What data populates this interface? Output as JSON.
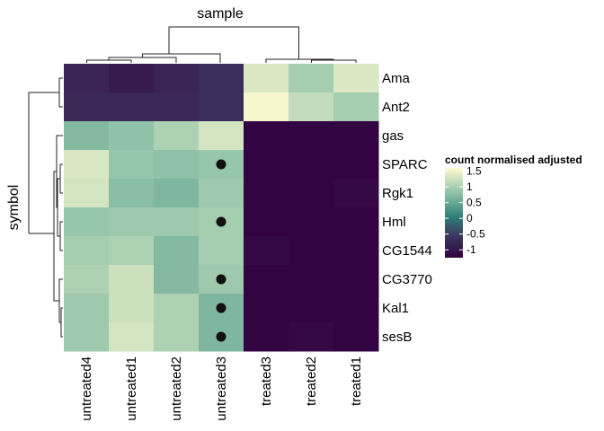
{
  "chart_data": {
    "type": "heatmap",
    "title": "sample",
    "xlabel": "sample",
    "ylabel": "symbol",
    "columns": [
      "untreated4",
      "untreated1",
      "untreated2",
      "untreated3",
      "treated3",
      "treated2",
      "treated1"
    ],
    "rows": [
      "Ama",
      "Ant2",
      "gas",
      "SPARC",
      "Rgk1",
      "Hml",
      "CG1544",
      "CG3770",
      "Kal1",
      "sesB"
    ],
    "values": [
      [
        -0.85,
        -0.95,
        -0.85,
        -0.75,
        1.35,
        1.0,
        1.35
      ],
      [
        -0.8,
        -0.8,
        -0.8,
        -0.75,
        1.55,
        1.2,
        1.0
      ],
      [
        0.75,
        0.85,
        1.05,
        1.3,
        -1.2,
        -1.2,
        -1.2
      ],
      [
        1.35,
        0.9,
        0.85,
        0.9,
        -1.2,
        -1.2,
        -1.2
      ],
      [
        1.3,
        0.8,
        0.7,
        0.95,
        -1.2,
        -1.2,
        -1.15
      ],
      [
        0.9,
        0.95,
        0.95,
        1.0,
        -1.2,
        -1.2,
        -1.2
      ],
      [
        1.0,
        1.05,
        0.75,
        1.0,
        -1.15,
        -1.2,
        -1.2
      ],
      [
        1.05,
        1.25,
        0.75,
        0.95,
        -1.2,
        -1.2,
        -1.2
      ],
      [
        0.95,
        1.25,
        1.05,
        0.7,
        -1.2,
        -1.2,
        -1.2
      ],
      [
        0.95,
        1.3,
        1.05,
        0.7,
        -1.2,
        -1.15,
        -1.2
      ]
    ],
    "markers": [
      {
        "row": "SPARC",
        "column": "untreated3"
      },
      {
        "row": "Hml",
        "column": "untreated3"
      },
      {
        "row": "CG3770",
        "column": "untreated3"
      },
      {
        "row": "Kal1",
        "column": "untreated3"
      },
      {
        "row": "sesB",
        "column": "untreated3"
      }
    ],
    "legend": {
      "title": "count normalised adjusted",
      "ticks": [
        1.5,
        1,
        0.5,
        0,
        -0.5,
        -1
      ],
      "tick_labels": [
        "1.5",
        "1",
        "0.5",
        "0",
        "-0.5",
        "-1"
      ],
      "range": [
        -1.25,
        1.6
      ],
      "placement": "right"
    },
    "colors": {
      "low": "#32003f",
      "mid_low": "#3d3a62",
      "mid": "#2e7d78",
      "mid_high": "#8fc2a8",
      "high": "#fffad0",
      "marker": "#111111"
    },
    "column_dendrogram": "shown above heatmap",
    "row_dendrogram": "shown left of heatmap"
  }
}
